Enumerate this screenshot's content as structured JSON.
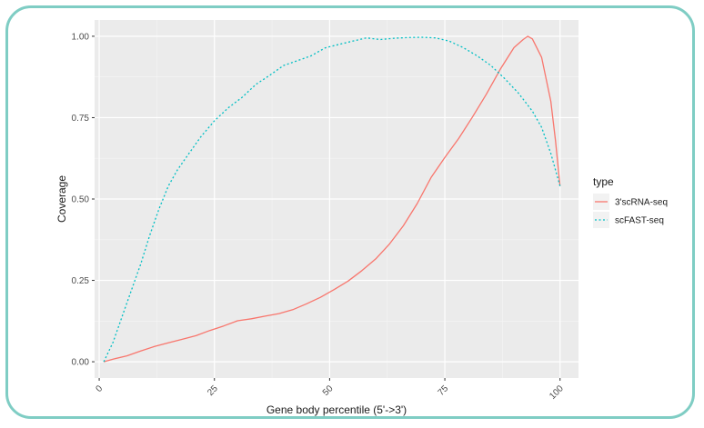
{
  "chart_data": {
    "type": "line",
    "title": "",
    "xlabel": "Gene body percentile (5'->3')",
    "ylabel": "Coverage",
    "xlim": [
      -1,
      104
    ],
    "ylim": [
      -0.05,
      1.05
    ],
    "x_ticks": [
      "0",
      "25",
      "50",
      "75",
      "100"
    ],
    "y_ticks": [
      "0.00",
      "0.25",
      "0.50",
      "0.75",
      "1.00"
    ],
    "grid": true,
    "legend": {
      "title": "type",
      "placement": "right"
    },
    "series": [
      {
        "name": "3'scRNA-seq",
        "color": "#f8766d",
        "style": "solid",
        "points": [
          [
            1,
            0
          ],
          [
            3,
            0.008
          ],
          [
            6,
            0.018
          ],
          [
            9,
            0.033
          ],
          [
            12,
            0.047
          ],
          [
            15,
            0.058
          ],
          [
            18,
            0.069
          ],
          [
            21,
            0.08
          ],
          [
            24,
            0.096
          ],
          [
            27,
            0.11
          ],
          [
            30,
            0.126
          ],
          [
            33,
            0.132
          ],
          [
            36,
            0.14
          ],
          [
            39,
            0.148
          ],
          [
            42,
            0.16
          ],
          [
            45,
            0.178
          ],
          [
            48,
            0.198
          ],
          [
            51,
            0.222
          ],
          [
            54,
            0.248
          ],
          [
            57,
            0.28
          ],
          [
            60,
            0.316
          ],
          [
            63,
            0.362
          ],
          [
            66,
            0.418
          ],
          [
            69,
            0.486
          ],
          [
            72,
            0.566
          ],
          [
            75,
            0.628
          ],
          [
            78,
            0.686
          ],
          [
            81,
            0.752
          ],
          [
            84,
            0.822
          ],
          [
            87,
            0.898
          ],
          [
            90,
            0.965
          ],
          [
            92,
            0.99
          ],
          [
            93,
            1.0
          ],
          [
            94,
            0.992
          ],
          [
            96,
            0.935
          ],
          [
            98,
            0.8
          ],
          [
            99,
            0.68
          ],
          [
            100,
            0.54
          ]
        ]
      },
      {
        "name": "scFAST-seq",
        "color": "#00bfc4",
        "style": "dotted",
        "points": [
          [
            1,
            0
          ],
          [
            3,
            0.06
          ],
          [
            5,
            0.14
          ],
          [
            7,
            0.22
          ],
          [
            9,
            0.3
          ],
          [
            11,
            0.39
          ],
          [
            13,
            0.47
          ],
          [
            15,
            0.54
          ],
          [
            17,
            0.59
          ],
          [
            19,
            0.63
          ],
          [
            22,
            0.69
          ],
          [
            25,
            0.74
          ],
          [
            28,
            0.78
          ],
          [
            31,
            0.812
          ],
          [
            34,
            0.852
          ],
          [
            37,
            0.88
          ],
          [
            40,
            0.91
          ],
          [
            43,
            0.925
          ],
          [
            46,
            0.94
          ],
          [
            49,
            0.964
          ],
          [
            52,
            0.975
          ],
          [
            55,
            0.985
          ],
          [
            58,
            0.995
          ],
          [
            61,
            0.99
          ],
          [
            64,
            0.994
          ],
          [
            67,
            0.996
          ],
          [
            70,
            0.997
          ],
          [
            73,
            0.995
          ],
          [
            76,
            0.985
          ],
          [
            79,
            0.965
          ],
          [
            82,
            0.94
          ],
          [
            85,
            0.91
          ],
          [
            88,
            0.87
          ],
          [
            91,
            0.825
          ],
          [
            94,
            0.77
          ],
          [
            96,
            0.72
          ],
          [
            98,
            0.64
          ],
          [
            100,
            0.54
          ]
        ]
      }
    ]
  }
}
